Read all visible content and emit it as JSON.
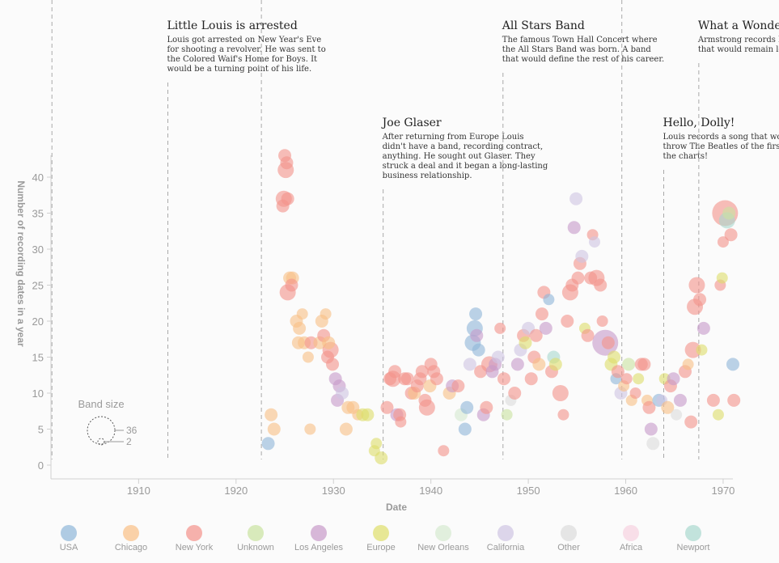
{
  "chart_data": {
    "type": "scatter",
    "xlabel": "Date",
    "ylabel": "Number of recording dates in a year",
    "xlim": [
      1901,
      1971
    ],
    "ylim": [
      0,
      45
    ],
    "x_ticks": [
      "1910",
      "1920",
      "1930",
      "1940",
      "1950",
      "1960",
      "1970"
    ],
    "y_ticks": [
      "0",
      "5",
      "10",
      "15",
      "20",
      "25",
      "30",
      "35",
      "40"
    ],
    "band_size": {
      "title": "Band size",
      "max_label": "36",
      "min_label": "2"
    },
    "legend": [
      {
        "name": "USA",
        "color": "#8fb6d8"
      },
      {
        "name": "Chicago",
        "color": "#f9bf85"
      },
      {
        "name": "New York",
        "color": "#f4928a"
      },
      {
        "name": "Unknown",
        "color": "#c9e3a0"
      },
      {
        "name": "Los Angeles",
        "color": "#c79ac9"
      },
      {
        "name": "Europe",
        "color": "#dede6a"
      },
      {
        "name": "New Orleans",
        "color": "#d5ead0"
      },
      {
        "name": "California",
        "color": "#cfc4e2"
      },
      {
        "name": "Other",
        "color": "#dcdcdc"
      },
      {
        "name": "Africa",
        "color": "#f6d1df"
      },
      {
        "name": "Newport",
        "color": "#a9d8cf"
      }
    ],
    "annotations": [
      {
        "year": 1901.1,
        "title": "",
        "lines": []
      },
      {
        "year": 1913.0,
        "title": "Little Louis is arrested",
        "lines": [
          "Louis got arrested on New Year's Eve",
          "for shooting a revolver. He was sent to",
          "the Colored Waif's Home for Boys. It",
          "would be a turning point of his life."
        ]
      },
      {
        "year": 1922.6,
        "title": "",
        "lines": []
      },
      {
        "year": 1935.1,
        "title": "Joe Glaser",
        "lines": [
          "After returning from Europe Louis",
          "didn't have a band, recording contract,",
          "anything. He sought out Glaser. They",
          "struck a deal and it began a long-lasting",
          "business relationship."
        ]
      },
      {
        "year": 1947.4,
        "title": "All Stars Band",
        "lines": [
          "The famous Town Hall Concert where",
          "the All Stars Band was born. A band",
          "that would define the rest of his career."
        ]
      },
      {
        "year": 1959.6,
        "title": "",
        "lines": []
      },
      {
        "year": 1963.9,
        "title": "Hello, Dolly!",
        "lines": [
          "Louis records a song that would",
          "throw The Beatles of the first pl",
          "the charts!"
        ]
      },
      {
        "year": 1967.5,
        "title": "What a Wonder",
        "lines": [
          "Armstrong records his",
          "that would remain lov"
        ]
      }
    ],
    "points": [
      [
        1923.3,
        3,
        0,
        3
      ],
      [
        1923.6,
        7,
        1,
        3
      ],
      [
        1923.9,
        5,
        1,
        3
      ],
      [
        1925.0,
        43,
        2,
        3
      ],
      [
        1925.1,
        41,
        2,
        4
      ],
      [
        1924.9,
        37,
        2,
        4
      ],
      [
        1924.8,
        36,
        2,
        3
      ],
      [
        1925.3,
        37,
        2,
        3
      ],
      [
        1925.2,
        42,
        2,
        3
      ],
      [
        1925.3,
        24,
        2,
        4
      ],
      [
        1925.5,
        26,
        1,
        3
      ],
      [
        1925.8,
        26,
        1,
        3
      ],
      [
        1925.7,
        25,
        2,
        3
      ],
      [
        1926.2,
        20,
        1,
        3
      ],
      [
        1926.5,
        19,
        1,
        3
      ],
      [
        1926.8,
        21,
        1,
        2
      ],
      [
        1926.4,
        17,
        1,
        3
      ],
      [
        1927.0,
        17,
        1,
        3
      ],
      [
        1927.4,
        15,
        1,
        2
      ],
      [
        1927.7,
        17,
        2,
        3
      ],
      [
        1927.6,
        5,
        1,
        2
      ],
      [
        1928.6,
        17,
        1,
        3
      ],
      [
        1928.8,
        20,
        1,
        3
      ],
      [
        1929.0,
        18,
        2,
        3
      ],
      [
        1929.2,
        21,
        1,
        2
      ],
      [
        1929.4,
        15,
        2,
        3
      ],
      [
        1929.7,
        16,
        2,
        4
      ],
      [
        1929.9,
        14,
        2,
        3
      ],
      [
        1929.5,
        17,
        1,
        3
      ],
      [
        1930.2,
        12,
        4,
        3
      ],
      [
        1930.4,
        9,
        4,
        3
      ],
      [
        1930.6,
        11,
        4,
        3
      ],
      [
        1930.9,
        10,
        7,
        3
      ],
      [
        1931.3,
        5,
        1,
        3
      ],
      [
        1931.5,
        8,
        1,
        3
      ],
      [
        1932.0,
        8,
        1,
        3
      ],
      [
        1932.5,
        7,
        1,
        2
      ],
      [
        1933.0,
        7,
        5,
        3
      ],
      [
        1933.5,
        7,
        5,
        3
      ],
      [
        1934.2,
        2,
        5,
        2
      ],
      [
        1934.4,
        3,
        5,
        2
      ],
      [
        1934.9,
        1,
        5,
        3
      ],
      [
        1935.5,
        8,
        2,
        3
      ],
      [
        1935.8,
        12,
        2,
        3
      ],
      [
        1936.1,
        12,
        2,
        4
      ],
      [
        1936.3,
        13,
        2,
        3
      ],
      [
        1936.5,
        7,
        4,
        3
      ],
      [
        1936.8,
        7,
        2,
        3
      ],
      [
        1936.9,
        6,
        2,
        2
      ],
      [
        1937.3,
        12,
        2,
        3
      ],
      [
        1937.6,
        12,
        2,
        3
      ],
      [
        1938.0,
        10,
        2,
        3
      ],
      [
        1938.3,
        10,
        1,
        3
      ],
      [
        1938.6,
        11,
        2,
        3
      ],
      [
        1938.9,
        12,
        2,
        3
      ],
      [
        1939.1,
        13,
        2,
        3
      ],
      [
        1939.4,
        9,
        2,
        3
      ],
      [
        1939.6,
        8,
        2,
        4
      ],
      [
        1939.9,
        11,
        1,
        3
      ],
      [
        1940.0,
        14,
        2,
        3
      ],
      [
        1940.3,
        13,
        2,
        3
      ],
      [
        1940.6,
        12,
        2,
        3
      ],
      [
        1941.3,
        2,
        2,
        2
      ],
      [
        1941.9,
        10,
        1,
        3
      ],
      [
        1942.2,
        11,
        4,
        3
      ],
      [
        1942.8,
        11,
        2,
        3
      ],
      [
        1943.1,
        7,
        6,
        3
      ],
      [
        1943.5,
        5,
        0,
        3
      ],
      [
        1943.7,
        8,
        0,
        3
      ],
      [
        1944.0,
        14,
        7,
        3
      ],
      [
        1944.3,
        17,
        0,
        4
      ],
      [
        1944.5,
        19,
        0,
        4
      ],
      [
        1944.6,
        21,
        0,
        3
      ],
      [
        1944.7,
        18,
        4,
        3
      ],
      [
        1944.9,
        16,
        0,
        3
      ],
      [
        1945.1,
        13,
        2,
        3
      ],
      [
        1945.4,
        7,
        4,
        3
      ],
      [
        1945.7,
        8,
        2,
        3
      ],
      [
        1946.0,
        14,
        2,
        4
      ],
      [
        1946.3,
        13,
        4,
        3
      ],
      [
        1946.6,
        14,
        4,
        3
      ],
      [
        1946.9,
        15,
        7,
        3
      ],
      [
        1947.1,
        19,
        2,
        2
      ],
      [
        1947.5,
        12,
        2,
        3
      ],
      [
        1947.8,
        7,
        3,
        2
      ],
      [
        1948.2,
        9,
        8,
        2
      ],
      [
        1948.6,
        10,
        2,
        3
      ],
      [
        1948.9,
        14,
        4,
        3
      ],
      [
        1949.2,
        16,
        7,
        3
      ],
      [
        1949.5,
        18,
        2,
        3
      ],
      [
        1949.7,
        17,
        5,
        3
      ],
      [
        1950.0,
        19,
        7,
        3
      ],
      [
        1950.3,
        12,
        2,
        3
      ],
      [
        1950.6,
        15,
        2,
        3
      ],
      [
        1950.8,
        18,
        2,
        3
      ],
      [
        1951.1,
        14,
        1,
        3
      ],
      [
        1951.4,
        21,
        2,
        3
      ],
      [
        1951.6,
        24,
        2,
        3
      ],
      [
        1951.8,
        19,
        4,
        3
      ],
      [
        1952.1,
        23,
        0,
        2
      ],
      [
        1952.4,
        13,
        2,
        3
      ],
      [
        1952.6,
        15,
        10,
        3
      ],
      [
        1952.8,
        14,
        5,
        3
      ],
      [
        1953.3,
        10,
        2,
        4
      ],
      [
        1953.6,
        7,
        2,
        2
      ],
      [
        1954.0,
        20,
        2,
        3
      ],
      [
        1954.3,
        24,
        2,
        4
      ],
      [
        1954.5,
        25,
        2,
        3
      ],
      [
        1954.7,
        33,
        4,
        3
      ],
      [
        1954.9,
        37,
        7,
        3
      ],
      [
        1955.1,
        26,
        2,
        3
      ],
      [
        1955.3,
        28,
        2,
        3
      ],
      [
        1955.5,
        29,
        7,
        3
      ],
      [
        1955.8,
        19,
        5,
        2
      ],
      [
        1956.1,
        18,
        2,
        3
      ],
      [
        1956.4,
        26,
        2,
        3
      ],
      [
        1956.6,
        32,
        2,
        2
      ],
      [
        1956.8,
        31,
        7,
        2
      ],
      [
        1957.0,
        26,
        2,
        4
      ],
      [
        1957.4,
        25,
        2,
        3
      ],
      [
        1957.6,
        20,
        2,
        2
      ],
      [
        1957.9,
        17,
        4,
        5
      ],
      [
        1958.2,
        17,
        2,
        3
      ],
      [
        1958.5,
        14,
        5,
        3
      ],
      [
        1958.8,
        15,
        5,
        3
      ],
      [
        1959.0,
        12,
        0,
        2
      ],
      [
        1959.2,
        13,
        2,
        3
      ],
      [
        1959.5,
        10,
        7,
        3
      ],
      [
        1959.8,
        11,
        1,
        2
      ],
      [
        1960.1,
        12,
        2,
        2
      ],
      [
        1960.3,
        14,
        3,
        3
      ],
      [
        1960.6,
        9,
        1,
        2
      ],
      [
        1961.0,
        10,
        2,
        2
      ],
      [
        1961.3,
        12,
        5,
        2
      ],
      [
        1961.6,
        14,
        2,
        3
      ],
      [
        1961.9,
        14,
        2,
        3
      ],
      [
        1962.2,
        9,
        1,
        2
      ],
      [
        1962.4,
        8,
        2,
        3
      ],
      [
        1962.6,
        5,
        4,
        3
      ],
      [
        1962.8,
        3,
        8,
        3
      ],
      [
        1963.4,
        9,
        0,
        3
      ],
      [
        1963.7,
        9,
        7,
        2
      ],
      [
        1964.0,
        12,
        5,
        2
      ],
      [
        1964.3,
        8,
        1,
        3
      ],
      [
        1964.6,
        11,
        2,
        3
      ],
      [
        1964.9,
        12,
        4,
        3
      ],
      [
        1965.2,
        7,
        8,
        2
      ],
      [
        1965.6,
        9,
        4,
        3
      ],
      [
        1966.1,
        13,
        2,
        3
      ],
      [
        1966.4,
        14,
        1,
        2
      ],
      [
        1966.7,
        6,
        2,
        3
      ],
      [
        1966.9,
        16,
        2,
        4
      ],
      [
        1967.1,
        22,
        2,
        4
      ],
      [
        1967.3,
        25,
        2,
        4
      ],
      [
        1967.6,
        23,
        2,
        3
      ],
      [
        1967.8,
        16,
        5,
        2
      ],
      [
        1968.0,
        19,
        4,
        3
      ],
      [
        1969.0,
        9,
        2,
        3
      ],
      [
        1969.5,
        7,
        5,
        2
      ],
      [
        1969.7,
        25,
        2,
        2
      ],
      [
        1969.9,
        26,
        5,
        2
      ],
      [
        1970.0,
        31,
        2,
        2
      ],
      [
        1970.2,
        35,
        2,
        6
      ],
      [
        1970.4,
        34,
        10,
        4
      ],
      [
        1970.6,
        35,
        3,
        3
      ],
      [
        1970.8,
        32,
        2,
        3
      ],
      [
        1971.0,
        14,
        0,
        3
      ],
      [
        1971.1,
        9,
        2,
        3
      ]
    ]
  }
}
